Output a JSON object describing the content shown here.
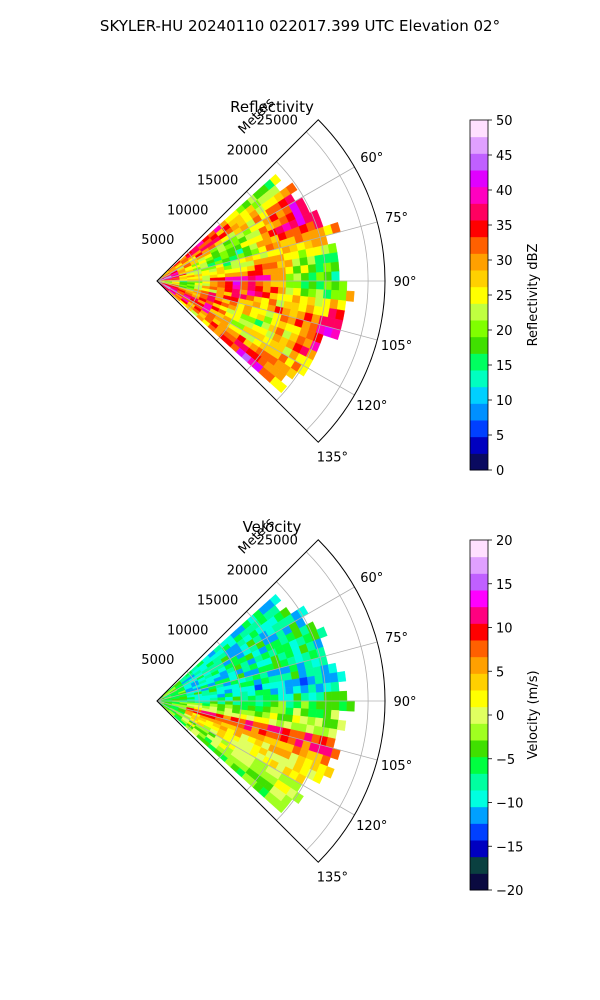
{
  "suptitle": "SKYLER-HU  20240110  022017.399 UTC Elevation 02°",
  "chart_data": [
    {
      "type": "heatmap",
      "subtype": "polar-sector-ppi",
      "title": "Reflectivity",
      "r_label": "Meters",
      "r_ticks": [
        5000,
        10000,
        15000,
        20000,
        25000
      ],
      "r_tick_labels": [
        "5000",
        "10000",
        "15000",
        "20000",
        "25000"
      ],
      "r_max": 27000,
      "theta_range_deg": [
        45,
        135
      ],
      "theta_ticks": [
        "60°",
        "75°",
        "90°",
        "105°",
        "120°",
        "135°"
      ],
      "grid": true,
      "colorbar": {
        "label": "Reflectivity dBZ",
        "vmin": 0,
        "vmax": 50,
        "ticks": [
          0,
          5,
          10,
          15,
          20,
          25,
          30,
          35,
          40,
          45,
          50
        ],
        "tick_labels": [
          "0",
          "5",
          "10",
          "15",
          "20",
          "25",
          "30",
          "35",
          "40",
          "45",
          "50"
        ],
        "colors": [
          "#0a0a60",
          "#0000c0",
          "#0040ff",
          "#0090ff",
          "#00d0ff",
          "#00ffc0",
          "#00ff60",
          "#40e000",
          "#80ff00",
          "#c0ff40",
          "#ffff00",
          "#ffd000",
          "#ffa000",
          "#ff6000",
          "#ff0000",
          "#ff0060",
          "#ff00c0",
          "#e000ff",
          "#c060ff",
          "#e0a0ff",
          "#ffe0ff"
        ]
      },
      "coverage_deg": [
        48,
        132
      ],
      "coverage_max_range_m": 22000
    },
    {
      "type": "heatmap",
      "subtype": "polar-sector-ppi",
      "title": "Velocity",
      "r_label": "Meters",
      "r_ticks": [
        5000,
        10000,
        15000,
        20000,
        25000
      ],
      "r_tick_labels": [
        "5000",
        "10000",
        "15000",
        "20000",
        "25000"
      ],
      "r_max": 27000,
      "theta_range_deg": [
        45,
        135
      ],
      "theta_ticks": [
        "60°",
        "75°",
        "90°",
        "105°",
        "120°",
        "135°"
      ],
      "grid": true,
      "colorbar": {
        "label": "Velocity (m/s)",
        "vmin": -20,
        "vmax": 20,
        "ticks": [
          -20,
          -15,
          -10,
          -5,
          0,
          5,
          10,
          15,
          20
        ],
        "tick_labels": [
          "−20",
          "−15",
          "−10",
          "−5",
          "0",
          "5",
          "10",
          "15",
          "20"
        ],
        "colors": [
          "#0a0a40",
          "#0a4040",
          "#0000c0",
          "#0040ff",
          "#00a0ff",
          "#00ffe0",
          "#00ffa0",
          "#00ff40",
          "#40e000",
          "#a0ff20",
          "#e0ff60",
          "#ffff00",
          "#ffd000",
          "#ffa000",
          "#ff6000",
          "#ff0000",
          "#ff0080",
          "#ff00ff",
          "#c060ff",
          "#e0a0ff",
          "#ffe0ff"
        ]
      },
      "coverage_deg": [
        48,
        132
      ],
      "coverage_max_range_m": 22000
    }
  ]
}
